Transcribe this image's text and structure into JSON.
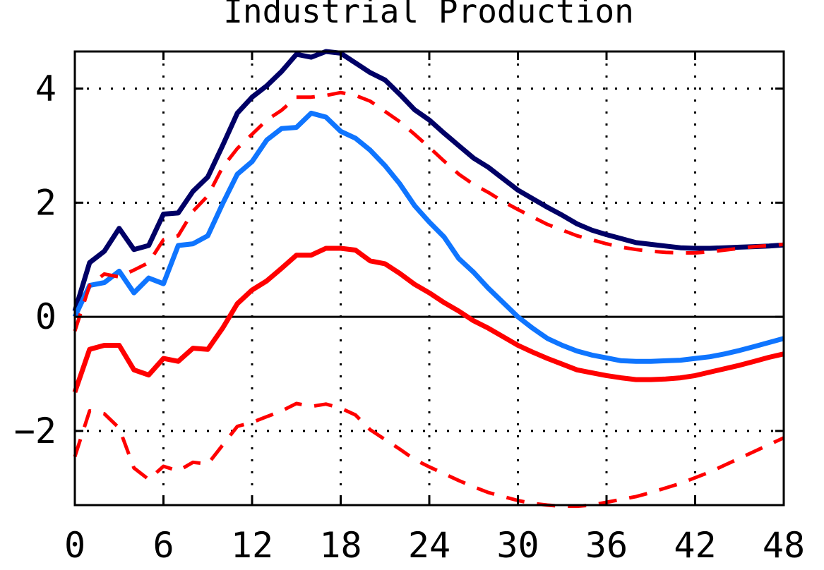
{
  "chart_data": {
    "type": "line",
    "title": "Industrial Production",
    "xlabel": "",
    "ylabel": "",
    "xlim": [
      0,
      48
    ],
    "ylim": [
      -3.3,
      4.65
    ],
    "xticks": [
      0,
      6,
      12,
      18,
      24,
      30,
      36,
      42,
      48
    ],
    "yticks": [
      -2,
      0,
      2,
      4
    ],
    "xtick_labels": [
      "0",
      "6",
      "12",
      "18",
      "24",
      "30",
      "36",
      "42",
      "48"
    ],
    "ytick_labels": [
      "−2",
      "0",
      "2",
      "4"
    ],
    "grid": true,
    "zero_line": true,
    "series": [
      {
        "color": "#000066",
        "style": "solid",
        "x": [
          0,
          1,
          2,
          3,
          4,
          5,
          6,
          7,
          8,
          9,
          10,
          11,
          12,
          13,
          14,
          15,
          16,
          17,
          18,
          19,
          20,
          21,
          22,
          23,
          24,
          25,
          26,
          27,
          28,
          29,
          30,
          31,
          32,
          33,
          34,
          35,
          36,
          37,
          38,
          39,
          40,
          41,
          42,
          43,
          44,
          45,
          46,
          47,
          48
        ],
        "y": [
          0.1,
          0.95,
          1.15,
          1.55,
          1.18,
          1.25,
          1.8,
          1.82,
          2.2,
          2.45,
          3.0,
          3.57,
          3.85,
          4.05,
          4.3,
          4.6,
          4.55,
          4.65,
          4.62,
          4.45,
          4.28,
          4.15,
          3.9,
          3.63,
          3.45,
          3.22,
          3.0,
          2.78,
          2.62,
          2.42,
          2.22,
          2.07,
          1.92,
          1.78,
          1.63,
          1.52,
          1.44,
          1.37,
          1.3,
          1.27,
          1.24,
          1.21,
          1.2,
          1.2,
          1.21,
          1.22,
          1.23,
          1.24,
          1.26
        ]
      },
      {
        "color": "#0f75ff",
        "style": "solid",
        "x": [
          0,
          1,
          2,
          3,
          4,
          5,
          6,
          7,
          8,
          9,
          10,
          11,
          12,
          13,
          14,
          15,
          16,
          17,
          18,
          19,
          20,
          21,
          22,
          23,
          24,
          25,
          26,
          27,
          28,
          29,
          30,
          31,
          32,
          33,
          34,
          35,
          36,
          37,
          38,
          39,
          40,
          41,
          42,
          43,
          44,
          45,
          46,
          47,
          48
        ],
        "y": [
          0.0,
          0.55,
          0.6,
          0.8,
          0.42,
          0.68,
          0.58,
          1.25,
          1.28,
          1.42,
          1.98,
          2.5,
          2.72,
          3.1,
          3.3,
          3.32,
          3.57,
          3.5,
          3.25,
          3.13,
          2.92,
          2.65,
          2.33,
          1.95,
          1.66,
          1.4,
          1.02,
          0.78,
          0.5,
          0.25,
          0.0,
          -0.2,
          -0.38,
          -0.5,
          -0.6,
          -0.67,
          -0.72,
          -0.77,
          -0.78,
          -0.78,
          -0.77,
          -0.76,
          -0.73,
          -0.7,
          -0.65,
          -0.59,
          -0.52,
          -0.45,
          -0.38
        ]
      },
      {
        "color": "#ff0000",
        "style": "solid",
        "x": [
          0,
          1,
          2,
          3,
          4,
          5,
          6,
          7,
          8,
          9,
          10,
          11,
          12,
          13,
          14,
          15,
          16,
          17,
          18,
          19,
          20,
          21,
          22,
          23,
          24,
          25,
          26,
          27,
          28,
          29,
          30,
          31,
          32,
          33,
          34,
          35,
          36,
          37,
          38,
          39,
          40,
          41,
          42,
          43,
          44,
          45,
          46,
          47,
          48
        ],
        "y": [
          -1.32,
          -0.57,
          -0.5,
          -0.5,
          -0.93,
          -1.02,
          -0.73,
          -0.78,
          -0.55,
          -0.57,
          -0.2,
          0.23,
          0.47,
          0.63,
          0.85,
          1.08,
          1.08,
          1.2,
          1.2,
          1.17,
          0.98,
          0.93,
          0.76,
          0.57,
          0.42,
          0.25,
          0.1,
          -0.07,
          -0.2,
          -0.35,
          -0.5,
          -0.62,
          -0.73,
          -0.83,
          -0.93,
          -0.98,
          -1.03,
          -1.07,
          -1.1,
          -1.1,
          -1.09,
          -1.07,
          -1.03,
          -0.97,
          -0.91,
          -0.85,
          -0.78,
          -0.71,
          -0.65
        ]
      },
      {
        "color": "#ff0000",
        "style": "dashed",
        "x": [
          0,
          1,
          2,
          3,
          4,
          5,
          6,
          7,
          8,
          9,
          10,
          11,
          12,
          13,
          14,
          15,
          16,
          17,
          18,
          19,
          20,
          21,
          22,
          23,
          24,
          25,
          26,
          27,
          28,
          29,
          30,
          31,
          32,
          33,
          34,
          35,
          36,
          37,
          38,
          39,
          40,
          41,
          42,
          43,
          44,
          45,
          46,
          47,
          48
        ],
        "y": [
          -0.25,
          0.55,
          0.75,
          0.7,
          0.82,
          0.95,
          1.35,
          1.42,
          1.85,
          2.12,
          2.62,
          2.95,
          3.2,
          3.45,
          3.62,
          3.85,
          3.85,
          3.88,
          3.93,
          3.88,
          3.78,
          3.6,
          3.42,
          3.2,
          2.97,
          2.73,
          2.5,
          2.32,
          2.18,
          2.02,
          1.88,
          1.75,
          1.62,
          1.52,
          1.42,
          1.35,
          1.28,
          1.22,
          1.18,
          1.15,
          1.13,
          1.12,
          1.12,
          1.14,
          1.17,
          1.2,
          1.23,
          1.25,
          1.27
        ]
      },
      {
        "color": "#ff0000",
        "style": "dashed",
        "x": [
          0,
          1,
          2,
          3,
          4,
          5,
          6,
          7,
          8,
          9,
          10,
          11,
          12,
          13,
          14,
          15,
          16,
          17,
          18,
          19,
          20,
          21,
          22,
          23,
          24,
          25,
          26,
          27,
          28,
          29,
          30,
          31,
          32,
          33,
          34,
          35,
          36,
          37,
          38,
          39,
          40,
          41,
          42,
          43,
          44,
          45,
          46,
          47,
          48
        ],
        "y": [
          -2.45,
          -1.65,
          -1.7,
          -1.95,
          -2.65,
          -2.85,
          -2.62,
          -2.7,
          -2.55,
          -2.58,
          -2.25,
          -1.92,
          -1.85,
          -1.75,
          -1.65,
          -1.52,
          -1.57,
          -1.53,
          -1.6,
          -1.72,
          -1.98,
          -2.15,
          -2.32,
          -2.5,
          -2.63,
          -2.75,
          -2.87,
          -2.98,
          -3.08,
          -3.15,
          -3.22,
          -3.27,
          -3.3,
          -3.32,
          -3.32,
          -3.3,
          -3.25,
          -3.2,
          -3.15,
          -3.08,
          -3.0,
          -2.92,
          -2.82,
          -2.72,
          -2.6,
          -2.48,
          -2.36,
          -2.24,
          -2.12
        ]
      }
    ]
  }
}
